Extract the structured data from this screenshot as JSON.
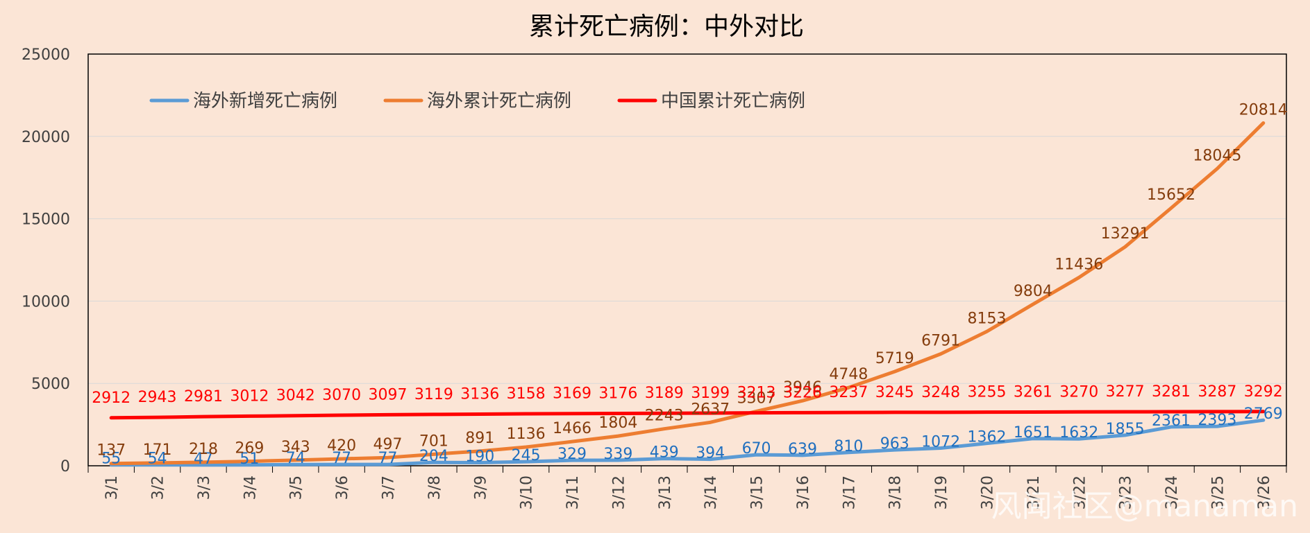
{
  "chart_data": {
    "type": "line",
    "title": "累计死亡病例：中外对比",
    "categories": [
      "3/1",
      "3/2",
      "3/3",
      "3/4",
      "3/5",
      "3/6",
      "3/7",
      "3/8",
      "3/9",
      "3/10",
      "3/11",
      "3/12",
      "3/13",
      "3/14",
      "3/15",
      "3/16",
      "3/17",
      "3/18",
      "3/19",
      "3/20",
      "3/21",
      "3/22",
      "3/23",
      "3/24",
      "3/25",
      "3/26"
    ],
    "ylim": [
      0,
      25000
    ],
    "yticks": [
      "0",
      "5000",
      "10000",
      "15000",
      "20000",
      "25000"
    ],
    "grid": true,
    "legend_position": "top-left",
    "series": [
      {
        "name": "海外新增死亡病例",
        "color": "#5b9bd5",
        "label_color": "#1f6fbf",
        "values": [
          55,
          54,
          47,
          51,
          74,
          77,
          77,
          204,
          190,
          245,
          329,
          339,
          439,
          394,
          670,
          639,
          810,
          963,
          1072,
          1362,
          1651,
          1632,
          1855,
          2361,
          2393,
          2769
        ]
      },
      {
        "name": "海外累计死亡病例",
        "color": "#ed7d31",
        "label_color": "#843c0c",
        "values": [
          137,
          171,
          218,
          269,
          343,
          420,
          497,
          701,
          891,
          1136,
          1466,
          1804,
          2243,
          2637,
          3307,
          3946,
          4748,
          5719,
          6791,
          8153,
          9804,
          11436,
          13291,
          15652,
          18045,
          20814
        ]
      },
      {
        "name": "中国累计死亡病例",
        "color": "#ff0000",
        "label_color": "#ff0000",
        "values": [
          2912,
          2943,
          2981,
          3012,
          3042,
          3070,
          3097,
          3119,
          3136,
          3158,
          3169,
          3176,
          3189,
          3199,
          3213,
          3226,
          3237,
          3245,
          3248,
          3255,
          3261,
          3270,
          3277,
          3281,
          3287,
          3292
        ]
      }
    ]
  },
  "watermark": "风闻社区@manaman"
}
